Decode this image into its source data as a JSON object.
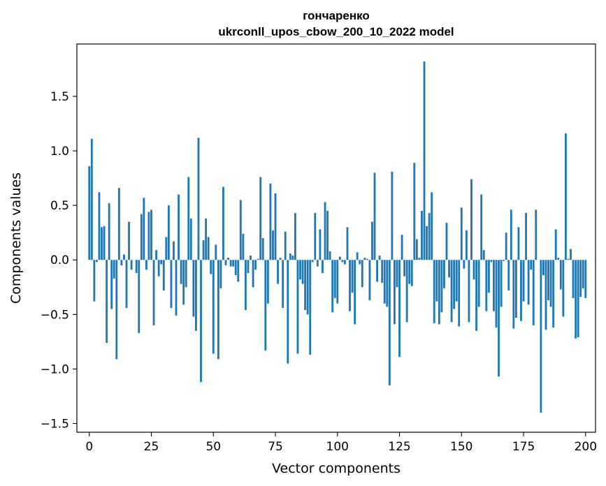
{
  "chart_data": {
    "type": "bar",
    "title": "гончаренко",
    "subtitle": "ukrconll_upos_cbow_200_10_2022 model",
    "xlabel": "Vector components",
    "ylabel": "Components values",
    "xlim": [
      -5,
      204
    ],
    "ylim": [
      -1.58,
      1.98
    ],
    "xticks": [
      0,
      25,
      50,
      75,
      100,
      125,
      150,
      175,
      200
    ],
    "xtick_labels": [
      "0",
      "25",
      "50",
      "75",
      "100",
      "125",
      "150",
      "175",
      "200"
    ],
    "yticks": [
      -1.5,
      -1.0,
      -0.5,
      0.0,
      0.5,
      1.0,
      1.5
    ],
    "ytick_labels": [
      "−1.5",
      "−1.0",
      "−0.5",
      "0.0",
      "0.5",
      "1.0",
      "1.5"
    ],
    "bar_color": "#1f77b4",
    "grid": false,
    "values": [
      0.86,
      1.11,
      -0.38,
      -0.02,
      0.62,
      0.3,
      0.31,
      -0.76,
      0.52,
      -0.45,
      -0.17,
      -0.91,
      0.66,
      -0.05,
      0.05,
      -0.44,
      0.35,
      -0.09,
      0.0,
      -0.12,
      -0.67,
      0.42,
      0.57,
      -0.09,
      0.44,
      0.46,
      -0.6,
      0.09,
      -0.15,
      -0.04,
      -0.28,
      0.21,
      0.5,
      -0.44,
      0.17,
      -0.51,
      0.6,
      -0.22,
      -0.41,
      -0.25,
      0.76,
      0.38,
      -0.52,
      -0.65,
      1.12,
      -1.12,
      0.18,
      0.38,
      0.21,
      -0.13,
      -0.86,
      0.14,
      -0.91,
      -0.26,
      0.67,
      -0.05,
      0.02,
      -0.06,
      -0.06,
      -0.14,
      -0.2,
      0.55,
      0.24,
      -0.46,
      -0.12,
      0.04,
      -0.25,
      -0.09,
      0.01,
      0.76,
      0.2,
      -0.83,
      -0.4,
      0.7,
      0.27,
      0.61,
      -0.22,
      0.02,
      -0.44,
      0.26,
      -0.95,
      0.06,
      0.04,
      0.43,
      -0.86,
      -0.18,
      -0.22,
      -0.46,
      -0.5,
      -0.87,
      -0.02,
      0.43,
      -0.06,
      0.28,
      -0.12,
      0.53,
      0.45,
      0.08,
      -0.48,
      -0.35,
      -0.4,
      0.03,
      -0.02,
      -0.04,
      0.3,
      -0.47,
      -0.3,
      -0.59,
      0.07,
      -0.04,
      -0.25,
      0.02,
      0.01,
      -0.37,
      0.35,
      0.8,
      -0.2,
      0.04,
      -0.21,
      -0.4,
      -0.43,
      -1.15,
      0.81,
      -0.59,
      -0.25,
      -0.89,
      0.23,
      -0.15,
      -0.57,
      -0.22,
      -0.24,
      0.89,
      0.19,
      0.02,
      0.45,
      1.82,
      0.31,
      0.43,
      0.62,
      -0.58,
      -0.38,
      -0.59,
      -0.48,
      -0.26,
      0.34,
      -0.16,
      -0.57,
      -0.45,
      -0.38,
      -0.61,
      0.48,
      -0.08,
      0.27,
      -0.57,
      0.74,
      -0.18,
      -0.65,
      -0.43,
      0.6,
      0.09,
      -0.47,
      -0.3,
      -0.02,
      -0.47,
      -0.62,
      -1.07,
      -0.43,
      -0.01,
      0.25,
      -0.28,
      0.46,
      -0.63,
      -0.53,
      0.3,
      -0.56,
      -0.38,
      0.43,
      -0.41,
      -0.09,
      -0.6,
      0.46,
      0.0,
      -1.4,
      -0.14,
      -0.64,
      -0.37,
      -0.43,
      -0.62,
      0.28,
      0.02,
      -0.27,
      -0.52,
      1.16,
      0.01,
      0.1,
      -0.35,
      -0.72,
      -0.71,
      -0.34,
      -0.26,
      -0.35
    ]
  }
}
